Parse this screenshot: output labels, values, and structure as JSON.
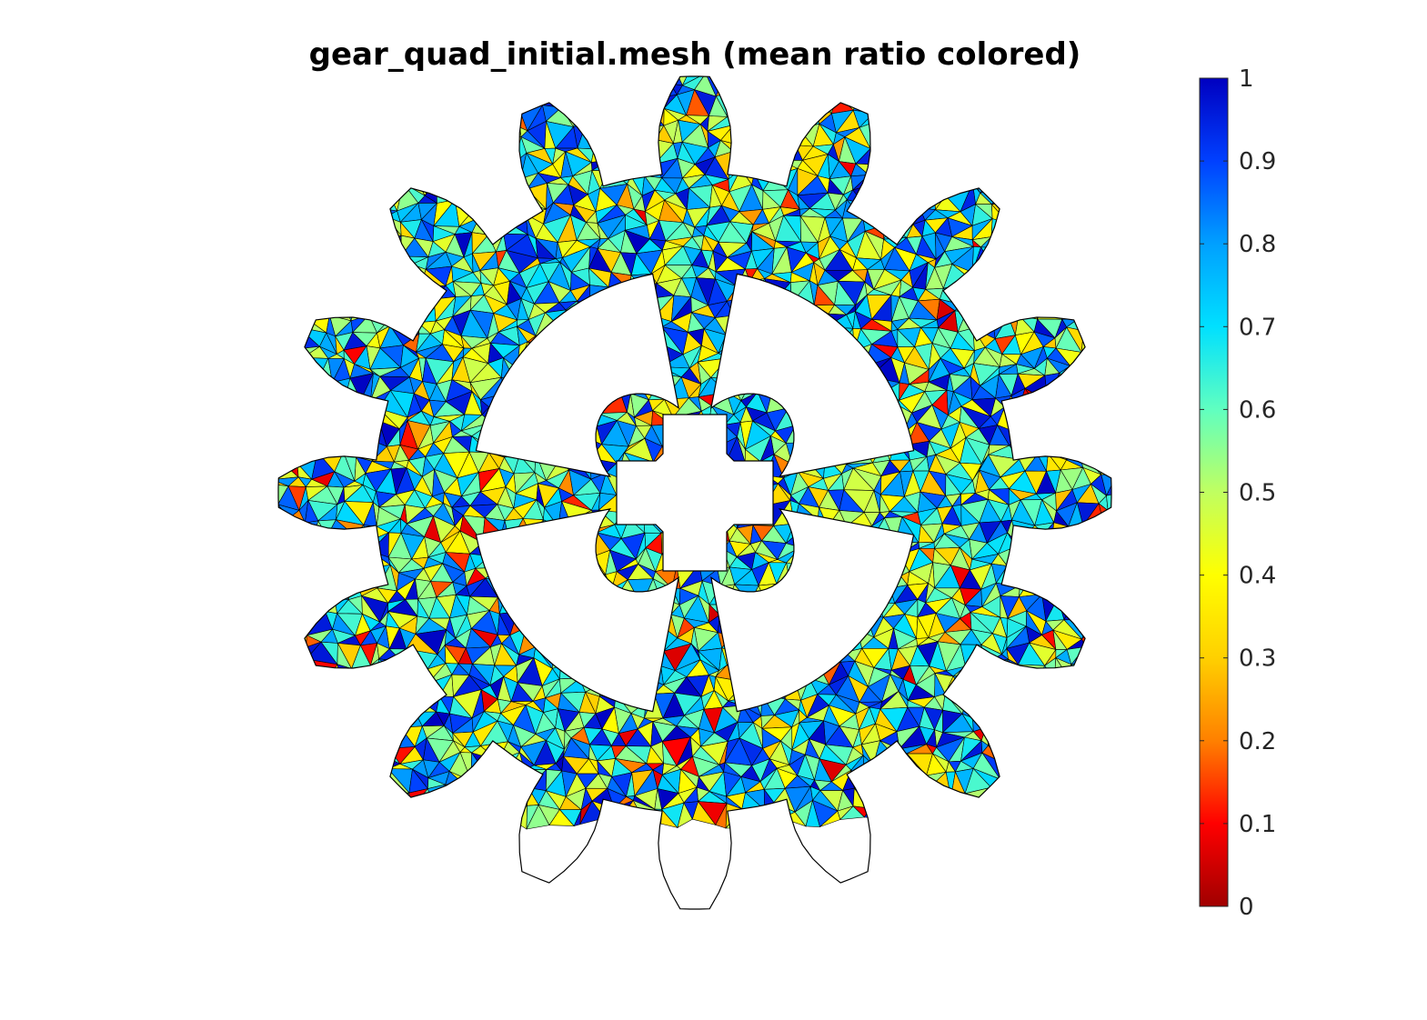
{
  "chart_data": {
    "type": "heatmap",
    "title": "gear_quad_initial.mesh (mean ratio colored)",
    "xlabel": "",
    "ylabel": "",
    "axis_visible": false,
    "grid": false,
    "colormap": "jet",
    "colorbar": {
      "location": "right",
      "clim": [
        0,
        1
      ],
      "ticks": [
        0,
        0.1,
        0.2,
        0.3,
        0.4,
        0.5,
        0.6,
        0.7,
        0.8,
        0.9,
        1
      ],
      "tick_labels": [
        "0",
        "0.1",
        "0.2",
        "0.3",
        "0.4",
        "0.5",
        "0.6",
        "0.7",
        "0.8",
        "0.9",
        "1"
      ],
      "colors_low_to_high": [
        "#a00000",
        "#ff0000",
        "#ff8000",
        "#ffd000",
        "#ffff00",
        "#c0ff60",
        "#60ffc0",
        "#00e0ff",
        "#00a0ff",
        "#0040ff",
        "#0000c0"
      ]
    },
    "mesh": {
      "shape": "gear",
      "teeth": 16,
      "window_cutouts": 4,
      "center_hole": "keyed cross",
      "element_edge_color": "#000000",
      "value_distribution": "mostly 0.3 to 1.0, dominant 0.5 to 0.8, few below 0.2"
    }
  }
}
